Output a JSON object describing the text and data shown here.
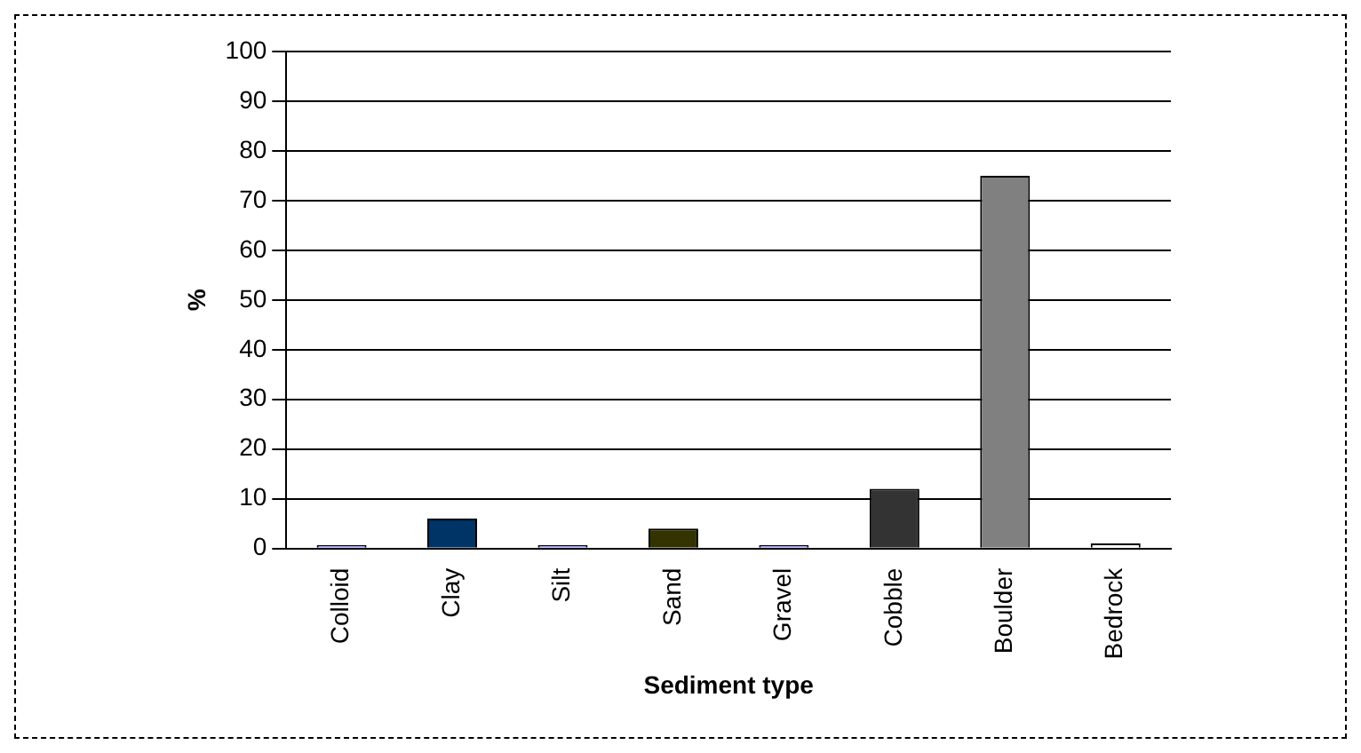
{
  "chart_data": {
    "type": "bar",
    "xlabel": "Sediment type",
    "ylabel": "%",
    "categories": [
      "Colloid",
      "Clay",
      "Silt",
      "Sand",
      "Gravel",
      "Cobble",
      "Boulder",
      "Bedrock"
    ],
    "values": [
      0,
      6,
      0,
      4,
      0,
      12,
      75,
      1
    ],
    "colors": [
      "#9999ff",
      "#003366",
      "#9999ff",
      "#333300",
      "#9999ff",
      "#333333",
      "#808080",
      "#ffffff"
    ],
    "ylim": [
      0,
      100
    ],
    "yticks": [
      0,
      10,
      20,
      30,
      40,
      50,
      60,
      70,
      80,
      90,
      100
    ],
    "grid": "y"
  }
}
